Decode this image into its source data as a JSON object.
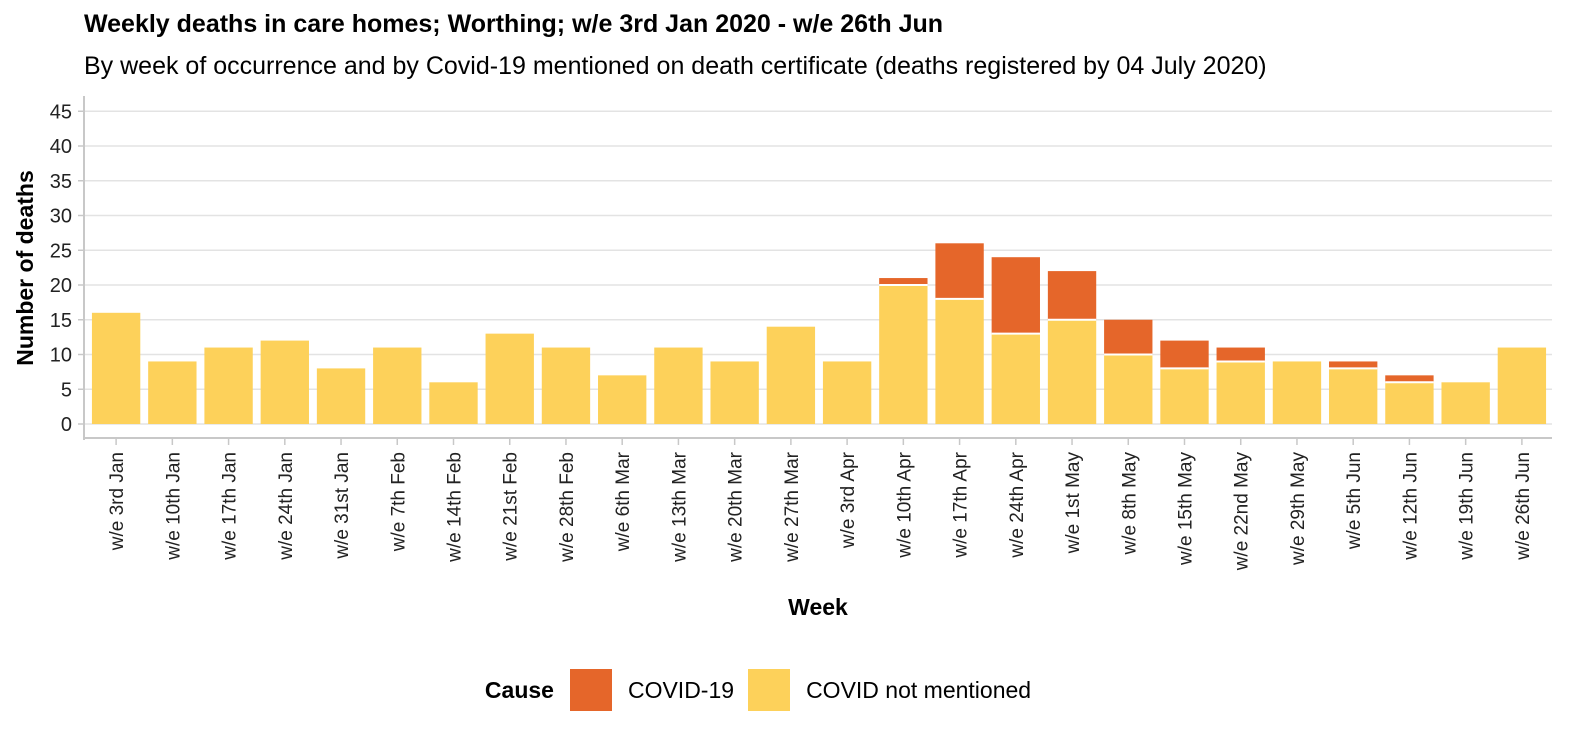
{
  "chart_data": {
    "type": "bar",
    "stacked": true,
    "title": "Weekly deaths in care homes; Worthing; w/e 3rd Jan 2020 - w/e 26th Jun",
    "subtitle": "By week of occurrence and by Covid-19 mentioned on death certificate (deaths registered by 04 July 2020)",
    "xlabel": "Week",
    "ylabel": "Number of deaths",
    "ylim": [
      0,
      45
    ],
    "yticks": [
      0,
      5,
      10,
      15,
      20,
      25,
      30,
      35,
      40,
      45
    ],
    "grid": true,
    "legend_position": "bottom",
    "legend_title": "Cause",
    "categories": [
      "w/e 3rd Jan",
      "w/e 10th Jan",
      "w/e 17th Jan",
      "w/e 24th Jan",
      "w/e 31st Jan",
      "w/e 7th Feb",
      "w/e 14th Feb",
      "w/e 21st Feb",
      "w/e 28th Feb",
      "w/e 6th Mar",
      "w/e 13th Mar",
      "w/e 20th Mar",
      "w/e 27th Mar",
      "w/e 3rd Apr",
      "w/e 10th Apr",
      "w/e 17th Apr",
      "w/e 24th Apr",
      "w/e 1st May",
      "w/e 8th May",
      "w/e 15th May",
      "w/e 22nd May",
      "w/e 29th May",
      "w/e 5th Jun",
      "w/e 12th Jun",
      "w/e 19th Jun",
      "w/e 26th Jun"
    ],
    "series": [
      {
        "name": "COVID not mentioned",
        "color": "#FDD15A",
        "values": [
          16,
          9,
          11,
          12,
          8,
          11,
          6,
          13,
          11,
          7,
          11,
          9,
          14,
          9,
          20,
          18,
          13,
          15,
          10,
          8,
          9,
          9,
          8,
          6,
          6,
          11
        ]
      },
      {
        "name": "COVID-19",
        "color": "#E5662A",
        "values": [
          0,
          0,
          0,
          0,
          0,
          0,
          0,
          0,
          0,
          0,
          0,
          0,
          0,
          0,
          1,
          8,
          11,
          7,
          5,
          4,
          2,
          0,
          1,
          1,
          0,
          0
        ]
      }
    ],
    "legend_order": [
      "COVID-19",
      "COVID not mentioned"
    ]
  }
}
